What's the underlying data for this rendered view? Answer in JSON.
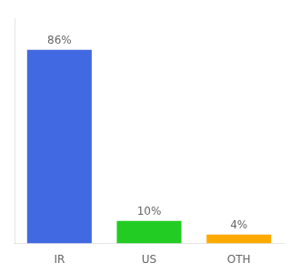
{
  "chart_data": {
    "type": "bar",
    "categories": [
      "IR",
      "US",
      "OTH"
    ],
    "values": [
      86,
      10,
      4
    ],
    "value_labels": [
      "86%",
      "10%",
      "4%"
    ],
    "colors": [
      "#4169e1",
      "#22cc22",
      "#ffaa00"
    ],
    "ylim": [
      0,
      100
    ],
    "data_labels": true,
    "tick_labels": "x",
    "grid": false
  }
}
